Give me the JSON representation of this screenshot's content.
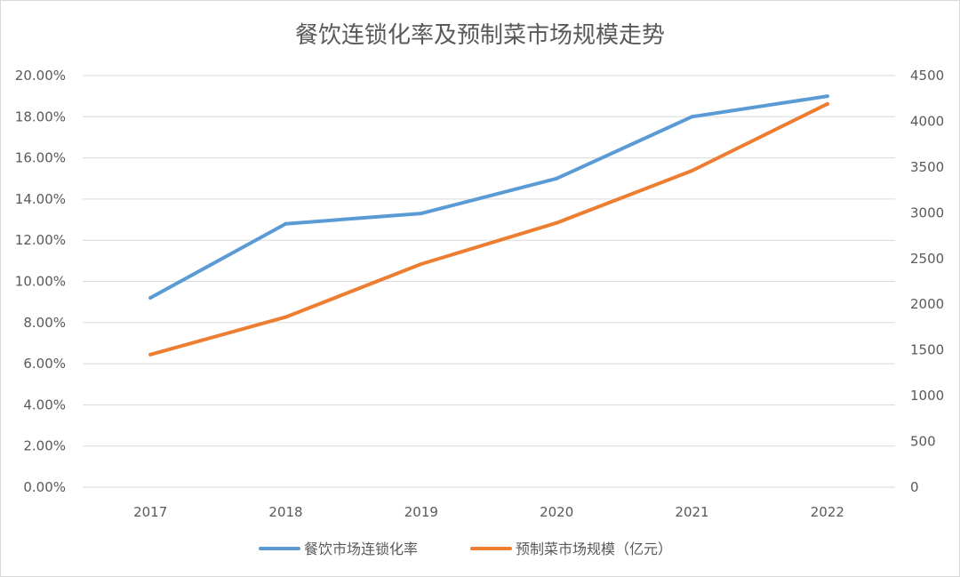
{
  "chart_data": {
    "type": "line",
    "title": "餐饮连锁化率及预制菜市场规模走势",
    "categories": [
      "2017",
      "2018",
      "2019",
      "2020",
      "2021",
      "2022"
    ],
    "series": [
      {
        "name": "餐饮市场连锁化率",
        "axis": "left",
        "color": "#5B9BD5",
        "values": [
          0.092,
          0.128,
          0.133,
          0.15,
          0.18,
          0.19
        ]
      },
      {
        "name": "预制菜市场规模（亿元）",
        "axis": "right",
        "color": "#ED7D31",
        "values": [
          1450,
          1860,
          2440,
          2890,
          3460,
          4190
        ]
      }
    ],
    "y_left": {
      "min": 0,
      "max": 0.2,
      "step": 0.02,
      "tick_labels": [
        "0.00%",
        "2.00%",
        "4.00%",
        "6.00%",
        "8.00%",
        "10.00%",
        "12.00%",
        "14.00%",
        "16.00%",
        "18.00%",
        "20.00%"
      ]
    },
    "y_right": {
      "min": 0,
      "max": 4500,
      "step": 500,
      "tick_labels": [
        "0",
        "500",
        "1000",
        "1500",
        "2000",
        "2500",
        "3000",
        "3500",
        "4000",
        "4500"
      ]
    },
    "grid": true,
    "legend_position": "bottom"
  }
}
